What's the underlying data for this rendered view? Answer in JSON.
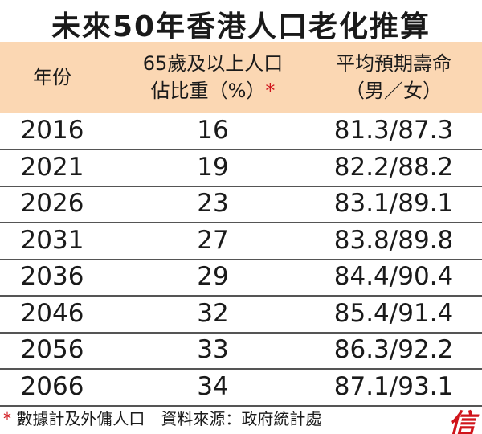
{
  "title": "未來50年香港人口老化推算",
  "table": {
    "header": [
      [
        "年份"
      ],
      [
        "65歲及以上人口",
        "佔比重（%）"
      ],
      [
        "平均預期壽命",
        "（男／女）"
      ]
    ],
    "header_mark": "*",
    "rows": [
      [
        2016,
        16,
        "81.3/87.3"
      ],
      [
        2021,
        19,
        "82.2/88.2"
      ],
      [
        2026,
        23,
        "83.1/89.1"
      ],
      [
        2031,
        27,
        "83.8/89.8"
      ],
      [
        2036,
        29,
        "84.4/90.4"
      ],
      [
        2046,
        32,
        "85.4/91.4"
      ],
      [
        2056,
        33,
        "86.3/92.2"
      ],
      [
        2066,
        34,
        "87.1/93.1"
      ]
    ]
  },
  "footnote": {
    "mark": "*",
    "text": "數據計及外傭人口　資料來源：政府統計處"
  },
  "logo": "信"
}
